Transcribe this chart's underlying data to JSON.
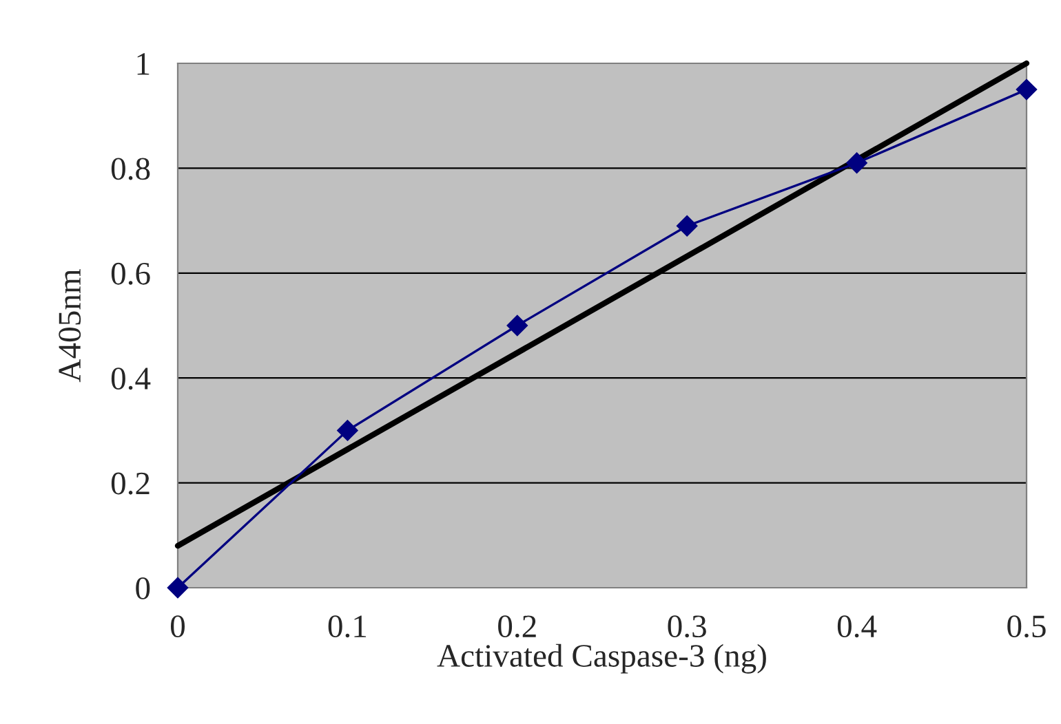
{
  "chart_data": {
    "type": "line",
    "xlabel": "Activated Caspase-3 (ng)",
    "ylabel": "A405nm",
    "xlim": [
      0,
      0.5
    ],
    "xticks": [
      0,
      0.1,
      0.2,
      0.3,
      0.4,
      0.5
    ],
    "ylim": [
      0,
      1
    ],
    "yticks": [
      0,
      0.2,
      0.4,
      0.6,
      0.8,
      1
    ],
    "grid": "y",
    "legend": false,
    "series": [
      {
        "type": "line",
        "color": "#000080",
        "marker": "diamond",
        "x": [
          0,
          0.1,
          0.2,
          0.3,
          0.4,
          0.5
        ],
        "values": [
          0,
          0.3,
          0.5,
          0.69,
          0.81,
          0.95
        ]
      },
      {
        "type": "line",
        "color": "#000000",
        "marker": "none",
        "x": [
          0,
          0.5
        ],
        "values": [
          0.08,
          1.0
        ]
      }
    ]
  }
}
